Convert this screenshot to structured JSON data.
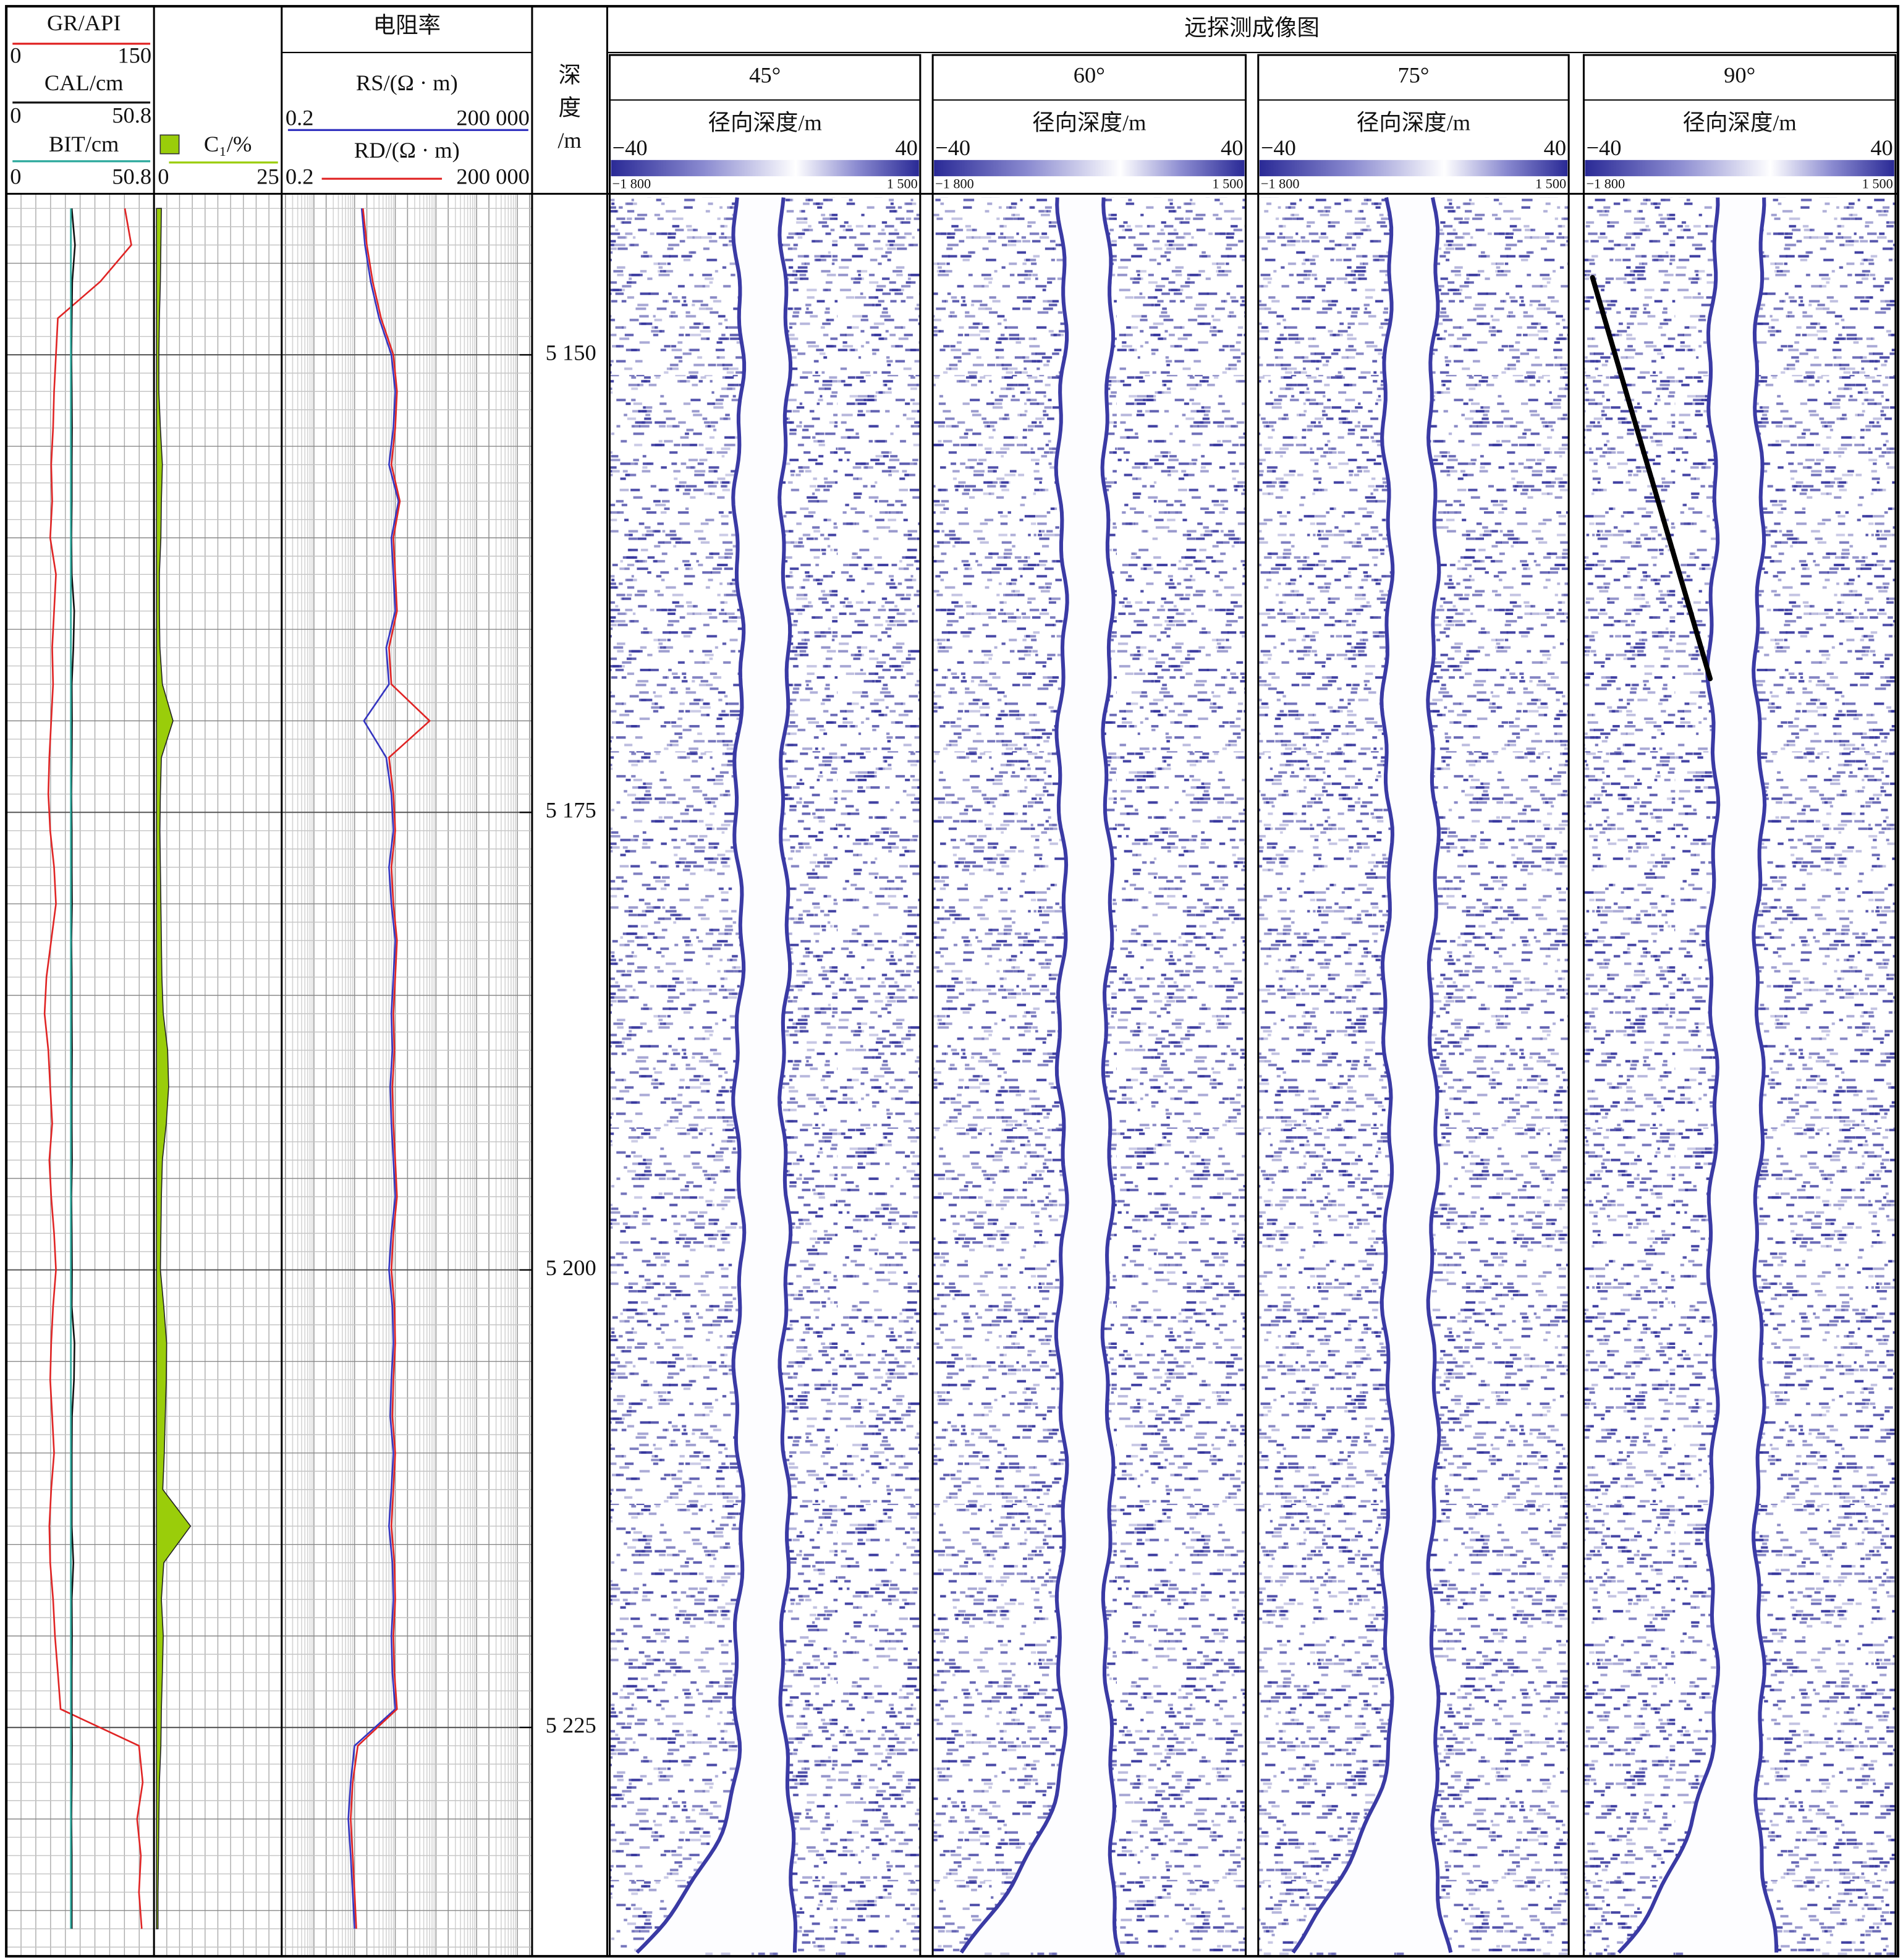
{
  "chart_data": {
    "type": "well-log",
    "depth_label": [
      "深",
      "度",
      "/m"
    ],
    "ylim": [
      5141.2,
      5237.5
    ],
    "yticks": [
      {
        "value": 5150,
        "label": "5 150"
      },
      {
        "value": 5175,
        "label": "5 175"
      },
      {
        "value": 5200,
        "label": "5 200"
      },
      {
        "value": 5225,
        "label": "5 225"
      }
    ],
    "depth": [
      5142,
      5144,
      5146,
      5148,
      5150,
      5152,
      5154,
      5156,
      5158,
      5160,
      5162,
      5164,
      5166,
      5168,
      5170,
      5172,
      5174,
      5176,
      5178,
      5180,
      5182,
      5184,
      5186,
      5188,
      5190,
      5192,
      5194,
      5196,
      5198,
      5200,
      5202,
      5204,
      5206,
      5208,
      5210,
      5212,
      5214,
      5216,
      5218,
      5220,
      5222,
      5224,
      5226,
      5228,
      5230,
      5232,
      5234,
      5236
    ],
    "tracks": [
      {
        "curves": [
          {
            "name": "GR/API",
            "color": "#e02424",
            "xlim": [
              0,
              150
            ],
            "xticks": [
              0,
              150
            ],
            "values": [
              123,
              130,
              97,
              52,
              50,
              48,
              47,
              45,
              46,
              44,
              50,
              48,
              46,
              47,
              45,
              43,
              42,
              44,
              48,
              50,
              45,
              40,
              38,
              42,
              44,
              46,
              43,
              45,
              48,
              50,
              47,
              45,
              44,
              46,
              48,
              45,
              43,
              44,
              47,
              49,
              52,
              55,
              138,
              142,
              136,
              140,
              138,
              141
            ]
          },
          {
            "name": "CAL/cm",
            "color": "#111111",
            "xlim": [
              0,
              50.8
            ],
            "xticks": [
              0,
              50.8
            ],
            "values": [
              22.6,
              23.8,
              22.8,
              22.6,
              22.5,
              22.6,
              22.7,
              22.6,
              22.6,
              22.5,
              22.6,
              23.5,
              23.2,
              22.6,
              22.7,
              22.6,
              22.5,
              22.6,
              22.6,
              22.7,
              22.5,
              22.6,
              22.6,
              22.7,
              22.6,
              22.6,
              22.7,
              22.5,
              22.6,
              22.7,
              22.6,
              23.6,
              23.4,
              22.7,
              22.6,
              22.6,
              22.6,
              23.2,
              22.6,
              22.7,
              22.6,
              22.6,
              22.7,
              22.6,
              22.5,
              22.6,
              22.6,
              22.6
            ]
          },
          {
            "name": "BIT/cm",
            "color": "#2aa89c",
            "xlim": [
              0,
              50.8
            ],
            "xticks": [
              0,
              50.8
            ],
            "values": [
              22.3,
              22.3,
              22.3,
              22.3,
              22.3,
              22.3,
              22.3,
              22.3,
              22.3,
              22.3,
              22.3,
              22.3,
              22.3,
              22.3,
              22.3,
              22.3,
              22.3,
              22.3,
              22.3,
              22.3,
              22.3,
              22.3,
              22.3,
              22.3,
              22.3,
              22.3,
              22.3,
              22.3,
              22.3,
              22.3,
              22.3,
              22.3,
              22.3,
              22.3,
              22.3,
              22.3,
              22.3,
              22.3,
              22.3,
              22.3,
              22.3,
              22.3,
              22.3,
              22.3,
              22.3,
              22.3,
              22.3,
              22.3
            ]
          }
        ]
      },
      {
        "curves": [
          {
            "name": "C₁/%",
            "color": "#9acd0a",
            "fill": true,
            "xlim": [
              0,
              25
            ],
            "xticks": [
              0,
              25
            ],
            "values": [
              1.0,
              0.9,
              0.8,
              0.6,
              0.5,
              0.5,
              0.8,
              1.2,
              1.0,
              0.9,
              0.6,
              0.6,
              0.7,
              1.2,
              3.4,
              1.0,
              0.8,
              0.7,
              0.8,
              0.9,
              1.0,
              1.1,
              1.4,
              2.3,
              2.5,
              2.0,
              1.2,
              1.0,
              0.9,
              0.8,
              1.5,
              2.1,
              2.0,
              1.8,
              1.6,
              1.3,
              7.0,
              1.5,
              1.0,
              1.4,
              1.2,
              1.0,
              0.9,
              0.6,
              0.5,
              0.4,
              0.3,
              0.3
            ]
          }
        ]
      },
      {
        "title": "电阻率",
        "log": true,
        "curves": [
          {
            "name": "RS/(Ω · m)",
            "color": "#3434c0",
            "xlim": [
              0.2,
              200000
            ],
            "xticks": [
              0.2,
              {
                "value": 200000,
                "label": "200 000"
              }
            ],
            "values": [
              15,
              18,
              25,
              40,
              80,
              100,
              90,
              70,
              120,
              80,
              90,
              100,
              60,
              70,
              17,
              60,
              80,
              90,
              70,
              80,
              100,
              90,
              80,
              85,
              75,
              80,
              90,
              100,
              80,
              70,
              85,
              90,
              80,
              75,
              90,
              80,
              70,
              85,
              90,
              80,
              85,
              100,
              10,
              8,
              7,
              8,
              9,
              10
            ]
          },
          {
            "name": "RD/(Ω · m)",
            "color": "#e02424",
            "xlim": [
              0.2,
              200000
            ],
            "xticks": [
              0.2,
              {
                "value": 200000,
                "label": "200 000"
              }
            ],
            "values": [
              16,
              20,
              28,
              45,
              90,
              110,
              100,
              80,
              130,
              90,
              100,
              110,
              70,
              80,
              700,
              70,
              90,
              100,
              80,
              90,
              110,
              100,
              90,
              95,
              85,
              90,
              100,
              110,
              90,
              80,
              95,
              100,
              90,
              85,
              100,
              90,
              80,
              95,
              100,
              90,
              95,
              110,
              12,
              9,
              8,
              9,
              10,
              11
            ]
          }
        ]
      }
    ],
    "imaging": {
      "title": "远探测成像图",
      "panels": [
        {
          "name": "45°"
        },
        {
          "name": "60°"
        },
        {
          "name": "75°"
        },
        {
          "name": "90°"
        }
      ],
      "xlabel": "径向深度/m",
      "xlim": [
        -40,
        40
      ],
      "xticks": [
        {
          "value": -40,
          "label": "−40"
        },
        40
      ],
      "colorbar": [
        {
          "value": -1800,
          "label": "−1 800"
        },
        {
          "value": 1500,
          "label": "1 500"
        }
      ]
    }
  }
}
